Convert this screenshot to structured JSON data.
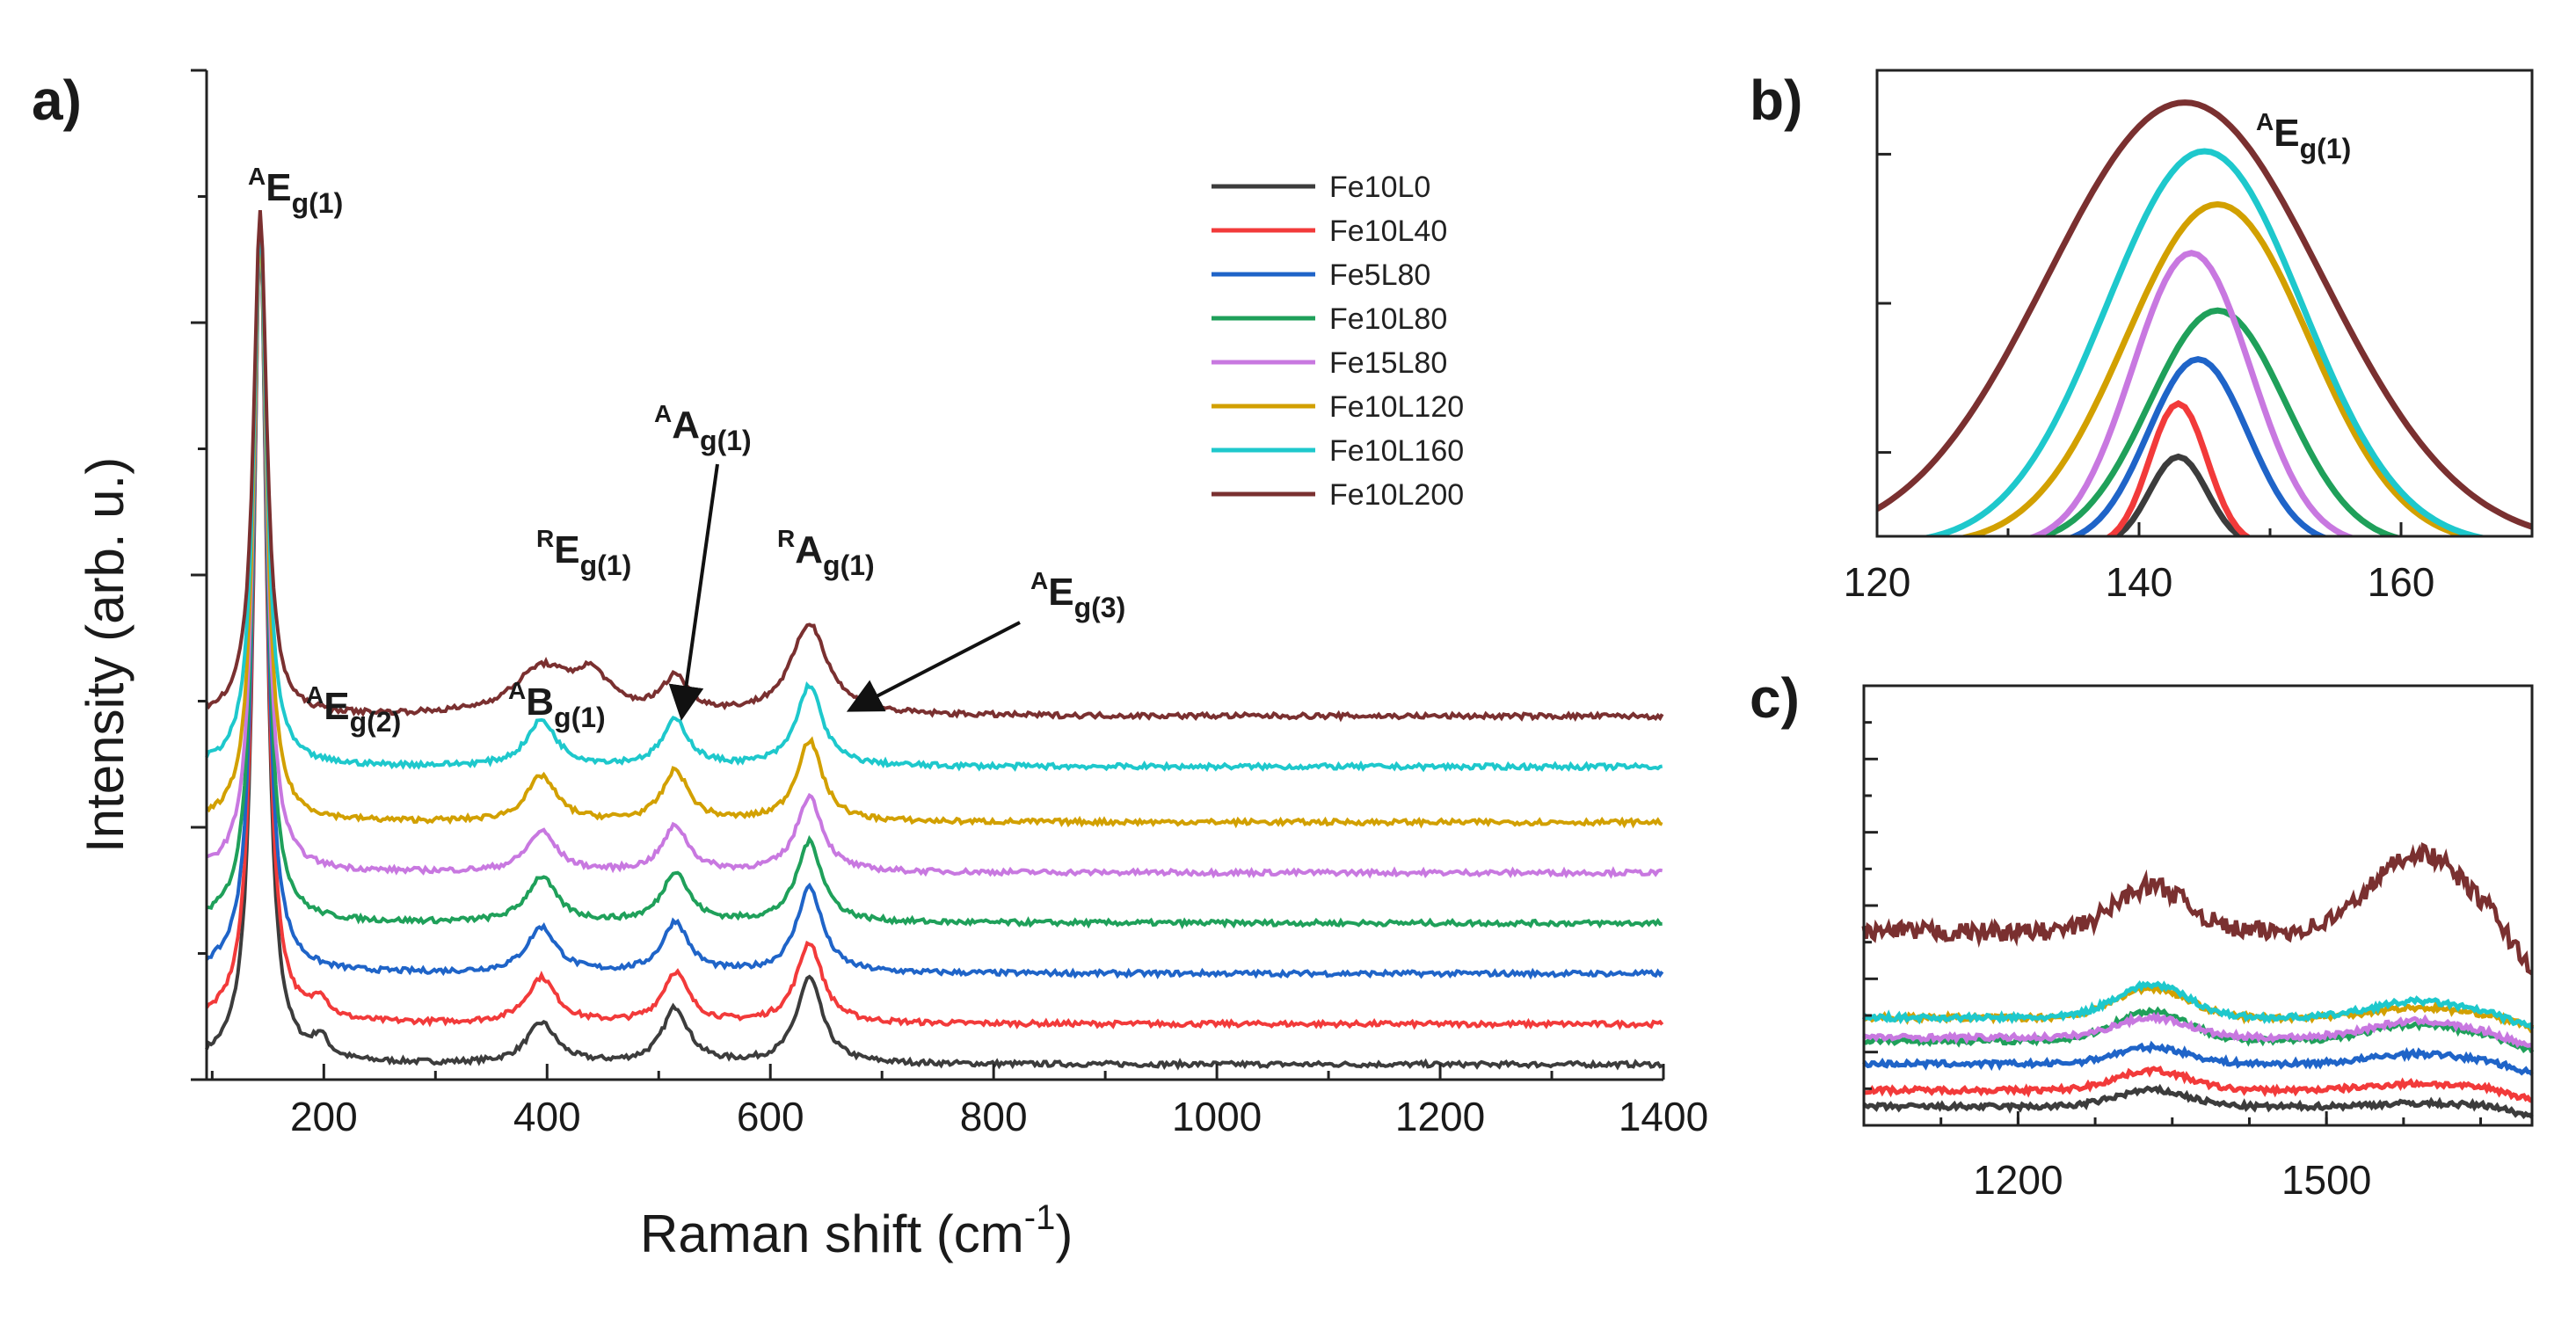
{
  "panels": {
    "a": "a)",
    "b": "b)",
    "c": "c)"
  },
  "axes": {
    "a_xlabel_main": "Raman shift (cm",
    "a_xlabel_sup": "-1",
    "a_xlabel_end": ")",
    "a_ylabel": "Intensity (arb. u.)"
  },
  "legend": [
    {
      "name": "Fe10L0",
      "color": "#3c3c3c"
    },
    {
      "name": "Fe10L40",
      "color": "#f23a3a"
    },
    {
      "name": "Fe5L80",
      "color": "#1f64c8"
    },
    {
      "name": "Fe10L80",
      "color": "#1fa05a"
    },
    {
      "name": "Fe15L80",
      "color": "#c878e0"
    },
    {
      "name": "Fe10L120",
      "color": "#d2a000"
    },
    {
      "name": "Fe10L160",
      "color": "#1ec8cc"
    },
    {
      "name": "Fe10L200",
      "color": "#7a3030"
    }
  ],
  "peaks": {
    "eg1": {
      "sup": "A",
      "main": "E",
      "sub": "g(1)"
    },
    "eg2": {
      "sup": "A",
      "main": "E",
      "sub": "g(2)"
    },
    "bg1": {
      "sup": "A",
      "main": "B",
      "sub": "g(1)"
    },
    "reg1": {
      "sup": "R",
      "main": "E",
      "sub": "g(1)"
    },
    "ag1": {
      "sup": "A",
      "main": "A",
      "sub": "g(1)"
    },
    "rag1": {
      "sup": "R",
      "main": "A",
      "sub": "g(1)"
    },
    "eg3": {
      "sup": "A",
      "main": "E",
      "sub": "g(3)"
    },
    "b_eg1": {
      "sup": "A",
      "main": "E",
      "sub": "g(1)"
    }
  },
  "chart_data": [
    {
      "id": "a",
      "type": "line",
      "title": "",
      "xlabel": "Raman shift (cm-1)",
      "ylabel": "Intensity (arb. u.)",
      "xlim": [
        95,
        1400
      ],
      "ylim": [
        0,
        10
      ],
      "xticks": [
        200,
        400,
        600,
        800,
        1000,
        1200,
        1400
      ],
      "x_sample": [
        100,
        130,
        143,
        160,
        200,
        300,
        395,
        440,
        515,
        560,
        635,
        700,
        800,
        1000,
        1200,
        1400
      ],
      "series": [
        {
          "name": "Fe10L0",
          "baseline": 0.15,
          "peaks": [
            [
              143,
              8.3,
              7
            ],
            [
              197,
              0.2,
              8
            ],
            [
              395,
              0.4,
              16
            ],
            [
              515,
              0.55,
              14
            ],
            [
              635,
              0.85,
              14
            ]
          ]
        },
        {
          "name": "Fe10L40",
          "baseline": 0.55,
          "peaks": [
            [
              143,
              7.9,
              7
            ],
            [
              197,
              0.2,
              8
            ],
            [
              395,
              0.45,
              16
            ],
            [
              515,
              0.5,
              14
            ],
            [
              635,
              0.8,
              14
            ]
          ]
        },
        {
          "name": "Fe5L80",
          "baseline": 1.05,
          "peaks": [
            [
              143,
              7.4,
              7
            ],
            [
              395,
              0.45,
              16
            ],
            [
              515,
              0.5,
              14
            ],
            [
              635,
              0.85,
              14
            ]
          ]
        },
        {
          "name": "Fe10L80",
          "baseline": 1.55,
          "peaks": [
            [
              143,
              6.9,
              7
            ],
            [
              395,
              0.45,
              16
            ],
            [
              515,
              0.5,
              14
            ],
            [
              635,
              0.8,
              14
            ]
          ]
        },
        {
          "name": "Fe15L80",
          "baseline": 2.05,
          "peaks": [
            [
              143,
              6.4,
              7
            ],
            [
              395,
              0.4,
              16
            ],
            [
              515,
              0.45,
              14
            ],
            [
              635,
              0.75,
              14
            ]
          ]
        },
        {
          "name": "Fe10L120",
          "baseline": 2.55,
          "peaks": [
            [
              143,
              5.9,
              7
            ],
            [
              395,
              0.45,
              16
            ],
            [
              515,
              0.5,
              14
            ],
            [
              635,
              0.8,
              14
            ]
          ]
        },
        {
          "name": "Fe10L160",
          "baseline": 3.1,
          "peaks": [
            [
              143,
              5.4,
              7
            ],
            [
              395,
              0.45,
              16
            ],
            [
              515,
              0.45,
              14
            ],
            [
              635,
              0.8,
              14
            ]
          ]
        },
        {
          "name": "Fe10L200",
          "baseline": 3.6,
          "peaks": [
            [
              143,
              5.0,
              7
            ],
            [
              395,
              0.45,
              30
            ],
            [
              440,
              0.35,
              20
            ],
            [
              515,
              0.35,
              14
            ],
            [
              635,
              0.9,
              20
            ]
          ]
        }
      ]
    },
    {
      "id": "b",
      "type": "line",
      "title": "",
      "xlim": [
        120,
        170
      ],
      "ylim": [
        0,
        10
      ],
      "xticks": [
        120,
        140,
        160
      ],
      "series": [
        {
          "name": "Fe10L0",
          "center": 143,
          "height": 2.0,
          "width": 2.2
        },
        {
          "name": "Fe10L40",
          "center": 143,
          "height": 3.2,
          "width": 2.2
        },
        {
          "name": "Fe5L80",
          "center": 144.5,
          "height": 4.2,
          "width": 3.8
        },
        {
          "name": "Fe10L80",
          "center": 146,
          "height": 5.3,
          "width": 5.2
        },
        {
          "name": "Fe15L80",
          "center": 144,
          "height": 6.6,
          "width": 4.5
        },
        {
          "name": "Fe10L120",
          "center": 146,
          "height": 7.7,
          "width": 7.0
        },
        {
          "name": "Fe10L160",
          "center": 145,
          "height": 8.9,
          "width": 7.5
        },
        {
          "name": "Fe10L200",
          "center": 143.5,
          "height": 10.0,
          "width": 10.5
        }
      ]
    },
    {
      "id": "c",
      "type": "line",
      "title": "",
      "xlim": [
        1050,
        1700
      ],
      "ylim": [
        0,
        10
      ],
      "xticks": [
        1200,
        1500
      ],
      "series": [
        {
          "name": "Fe10L0",
          "baseline": 0.3,
          "d_band": 0.5,
          "g_band": 0.1
        },
        {
          "name": "Fe10L40",
          "baseline": 0.8,
          "d_band": 0.6,
          "g_band": 0.2
        },
        {
          "name": "Fe5L80",
          "baseline": 1.6,
          "d_band": 0.5,
          "g_band": 0.3
        },
        {
          "name": "Fe10L80",
          "baseline": 2.3,
          "d_band": 0.9,
          "g_band": 0.5
        },
        {
          "name": "Fe15L80",
          "baseline": 2.4,
          "d_band": 0.6,
          "g_band": 0.5
        },
        {
          "name": "Fe10L120",
          "baseline": 3.0,
          "d_band": 0.9,
          "g_band": 0.3
        },
        {
          "name": "Fe10L160",
          "baseline": 3.0,
          "d_band": 1.0,
          "g_band": 0.5
        },
        {
          "name": "Fe10L200",
          "baseline": 5.6,
          "d_band": 1.4,
          "g_band": 2.4
        }
      ]
    }
  ]
}
